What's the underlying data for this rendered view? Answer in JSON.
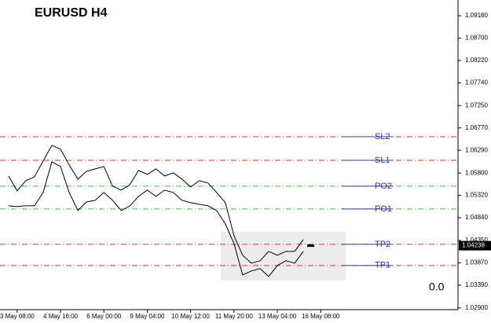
{
  "chart_data": {
    "type": "line",
    "title": "EURUSD  H4",
    "categories": [
      null,
      "3 May 08:00",
      null,
      null,
      null,
      null,
      "4 May 16:00",
      null,
      null,
      null,
      null,
      "6 May 00:00",
      null,
      null,
      null,
      null,
      "9 May 04:00",
      null,
      null,
      null,
      null,
      "10 May 12:00",
      null,
      null,
      null,
      null,
      "11 May 20:00",
      null,
      null,
      null,
      null,
      "13 May 04:00",
      null,
      null,
      null,
      null,
      "16 May 08:00"
    ],
    "series": [
      {
        "color": "#000000",
        "values": [
          1.05737,
          1.05416,
          1.05636,
          1.0572,
          1.06058,
          1.06395,
          1.06311,
          1.05973,
          1.05669,
          1.05838,
          1.05889,
          1.05939,
          1.05517,
          1.05433,
          1.05551,
          1.05855,
          1.05771,
          1.05889,
          1.05737,
          1.05804,
          1.05669,
          1.05501,
          1.05636,
          1.05585,
          1.05382,
          1.05163,
          1.04454,
          1.04032,
          1.03863,
          1.03914,
          1.04116,
          1.04032,
          1.04116,
          1.04116,
          1.0437,
          null,
          null
        ]
      },
      {
        "color": "#000000",
        "values": [
          1.05095,
          1.05079,
          1.05095,
          1.05095,
          1.05382,
          1.06041,
          1.05939,
          1.05382,
          1.04994,
          1.0518,
          1.05214,
          1.05382,
          1.05214,
          1.04994,
          1.05095,
          1.05298,
          1.05433,
          1.05298,
          1.05433,
          1.05382,
          1.05214,
          1.05163,
          1.05129,
          1.05095,
          1.04994,
          1.04707,
          1.04285,
          1.0361,
          1.03694,
          1.03745,
          1.03576,
          1.03813,
          1.03914,
          1.03863,
          1.04116,
          null,
          null
        ]
      }
    ],
    "levels": [
      {
        "name": "SL2",
        "value": 1.0658,
        "color": "#e03030"
      },
      {
        "name": "SL1",
        "value": 1.06074,
        "color": "#e03030"
      },
      {
        "name": "PO2",
        "value": 1.05517,
        "color": "#40c040"
      },
      {
        "name": "PO1",
        "value": 1.05027,
        "color": "#40c040"
      },
      {
        "name": "TP2",
        "value": 1.04268,
        "color": "#e03030"
      },
      {
        "name": "TP1",
        "value": 1.03812,
        "color": "#e03030"
      }
    ],
    "zone": [
      1.04538,
      1.03491
    ],
    "current_price": 1.04238,
    "profit_label": "0.0",
    "ylim": [
      1.0288,
      1.0952
    ],
    "yticks": [
      {
        "value": 1.0918,
        "label": "1.09180"
      },
      {
        "value": 1.087,
        "label": "1.08700"
      },
      {
        "value": 1.0822,
        "label": "1.08220"
      },
      {
        "value": 1.0774,
        "label": "1.07740"
      },
      {
        "value": 1.0725,
        "label": "1.07250"
      },
      {
        "value": 1.0677,
        "label": "1.06770"
      },
      {
        "value": 1.0629,
        "label": "1.06290"
      },
      {
        "value": 1.058,
        "label": "1.05800"
      },
      {
        "value": 1.0532,
        "label": "1.05320"
      },
      {
        "value": 1.0484,
        "label": "1.04840"
      },
      {
        "value": 1.0435,
        "label": "1.04350"
      },
      {
        "value": 1.0387,
        "label": "1.03870"
      },
      {
        "value": 1.0339,
        "label": "1.03390"
      },
      {
        "value": 1.029,
        "label": "1.02900"
      }
    ]
  }
}
